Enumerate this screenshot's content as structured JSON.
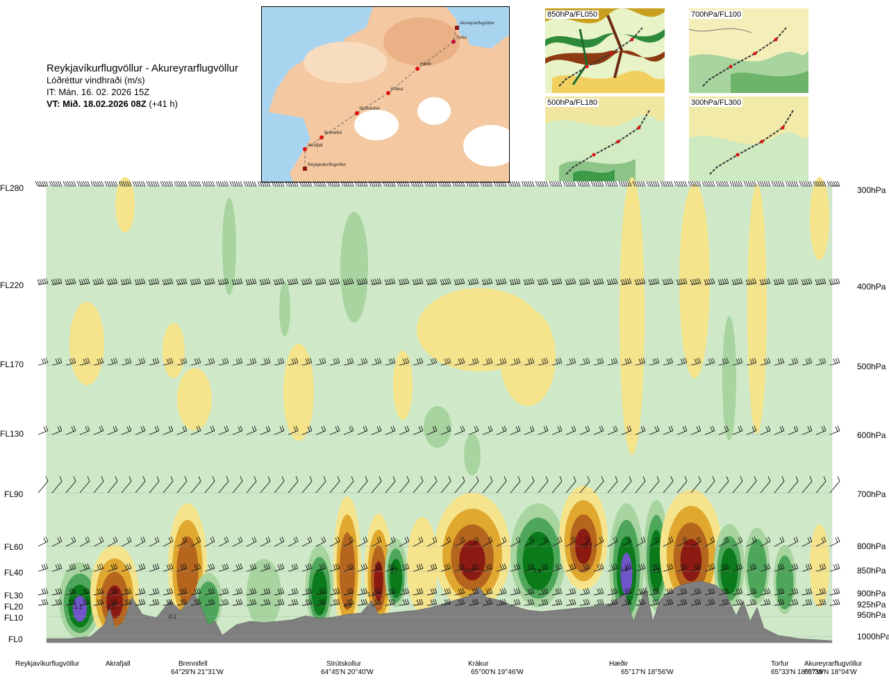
{
  "header": {
    "route_title": "Reykjavíkurflugvöllur - Akureyrarflugvöllur",
    "variable": "Lóðréttur vindhraði (m/s)",
    "issue_time": "IT: Mán. 16. 02. 2026 15Z",
    "valid_prefix": "VT: Mið. 18.02.2026 08Z",
    "valid_suffix": " (+41 h)"
  },
  "route_map": {
    "points": [
      {
        "name": "Akureyrarflugvöllur"
      },
      {
        "name": "Torfur"
      },
      {
        "name": "Hæðir"
      },
      {
        "name": "Krákur"
      },
      {
        "name": "Strútskollur"
      },
      {
        "name": "Brennifell"
      },
      {
        "name": "Akrafjall"
      },
      {
        "name": "Reykjavíkurflugvöllur"
      }
    ]
  },
  "thumbnails": [
    {
      "label": "850hPa/FL050"
    },
    {
      "label": "700hPa/FL100"
    },
    {
      "label": "500hPa/FL180"
    },
    {
      "label": "300hPa/FL300"
    }
  ],
  "chart_data": {
    "type": "heatmap",
    "title": "Reykjavíkurflugvöllur - Akureyrarflugvöllur",
    "subtitle": "Lóðréttur vindhraði (m/s)",
    "y_left_ticks": [
      "FL280",
      "FL220",
      "FL170",
      "FL130",
      "FL90",
      "FL60",
      "FL40",
      "FL30",
      "FL20",
      "FL10",
      "FL0"
    ],
    "y_right_ticks": [
      "300hPa",
      "400hPa",
      "500hPa",
      "600hPa",
      "700hPa",
      "800hPa",
      "850hPa",
      "900hPa",
      "925hPa",
      "950hPa",
      "1000hPa"
    ],
    "x_waypoints": [
      {
        "name": "Reykjavíkurflugvöllur",
        "coord": ""
      },
      {
        "name": "Akrafjall",
        "coord": ""
      },
      {
        "name": "Brennifell",
        "coord": "64°29'N 21°31'W"
      },
      {
        "name": "Strútskollur",
        "coord": "64°45'N 20°40'W"
      },
      {
        "name": "Krákur",
        "coord": "65°00'N 19°46'W"
      },
      {
        "name": "Hæðir",
        "coord": "65°17'N 18°56'W"
      },
      {
        "name": "Torfur",
        "coord": "65°33'N 18°07'W"
      },
      {
        "name": "Akureyrarflugvöllur",
        "coord": "65°39'N 18°04'W"
      }
    ],
    "value_labels": [
      "1.1",
      "-1.3",
      "0.1",
      "0.8",
      "1.1",
      "0.7",
      "-0.7",
      "0.6",
      "-0.7",
      "1.5",
      "1.6",
      "-0.7"
    ],
    "colors": {
      "strong_down": "#8b1a12",
      "down": "#b5651d",
      "weak_down": "#e0a82e",
      "slight_down": "#f5e48c",
      "neutral": "#cfe9c8",
      "slight_up": "#a8d4a0",
      "up": "#4ea65a",
      "strong_up": "#0a7a1a",
      "extreme_up": "#6f55c8",
      "terrain": "#7f7f7f"
    }
  }
}
